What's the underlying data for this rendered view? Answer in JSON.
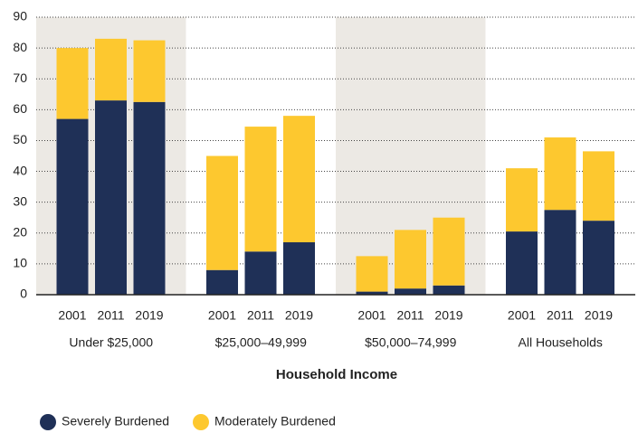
{
  "chart_data": {
    "type": "stacked_bar",
    "categories": [
      "2001",
      "2011",
      "2019",
      "2001",
      "2011",
      "2019",
      "2001",
      "2011",
      "2019",
      "2001",
      "2011",
      "2019"
    ],
    "groups": [
      "Under $25,000",
      "$25,000–49,999",
      "$50,000–74,999",
      "All Households"
    ],
    "xlabel": "Household Income",
    "series": [
      {
        "name": "Severely Burdened",
        "color": "#1f3057",
        "values": [
          57,
          63,
          62.5,
          8,
          14,
          17,
          1,
          2,
          3,
          20.5,
          27.5,
          24
        ]
      },
      {
        "name": "Moderately Burdened",
        "color": "#fdc82f",
        "values": [
          23,
          20,
          20,
          37,
          40.5,
          41,
          11.5,
          19,
          22,
          20.5,
          23.5,
          22.5
        ]
      }
    ],
    "ylim": [
      0,
      90
    ],
    "yticks": [
      0,
      10,
      20,
      30,
      40,
      50,
      60,
      70,
      80,
      90
    ],
    "grid": true,
    "legend": "bottom"
  }
}
